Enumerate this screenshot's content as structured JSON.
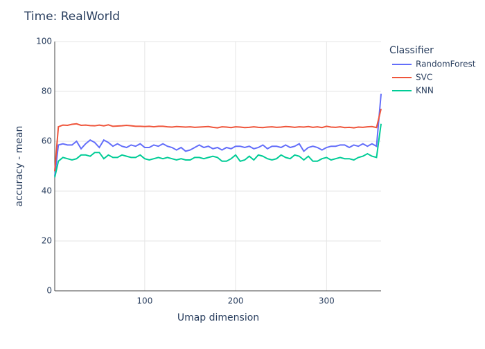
{
  "chart_data": {
    "type": "line",
    "title": "Time: RealWorld",
    "x_label": "Umap dimension",
    "y_label": "accuracy - mean",
    "legend_title": "Classifier",
    "x": [
      1,
      5,
      10,
      15,
      20,
      25,
      30,
      35,
      40,
      45,
      50,
      55,
      60,
      65,
      70,
      75,
      80,
      85,
      90,
      95,
      100,
      105,
      110,
      115,
      120,
      125,
      130,
      135,
      140,
      145,
      150,
      155,
      160,
      165,
      170,
      175,
      180,
      185,
      190,
      195,
      200,
      205,
      210,
      215,
      220,
      225,
      230,
      235,
      240,
      245,
      250,
      255,
      260,
      265,
      270,
      275,
      280,
      285,
      290,
      295,
      300,
      305,
      310,
      315,
      320,
      325,
      330,
      335,
      340,
      345,
      350,
      355,
      360
    ],
    "series": [
      {
        "name": "RandomForest",
        "color": "#636efa",
        "values": [
          46,
          58.5,
          59,
          58.5,
          58.5,
          60,
          57,
          59,
          60.5,
          59.5,
          57.5,
          60.5,
          59.5,
          58,
          59,
          58,
          57.5,
          58.5,
          58,
          59,
          57.5,
          57.5,
          58.5,
          58,
          59,
          58,
          57.5,
          56.5,
          57.5,
          56,
          56.5,
          57.5,
          58.5,
          57.5,
          58,
          57,
          57.5,
          56.5,
          57.5,
          57,
          58,
          58,
          57.5,
          58,
          57,
          57.5,
          58.5,
          57,
          58,
          58,
          57.5,
          58.5,
          57.5,
          58,
          59,
          56,
          57.5,
          58,
          57.5,
          56.5,
          57.5,
          58,
          58,
          58.5,
          58.5,
          57.5,
          58.5,
          58,
          59,
          58,
          59,
          58,
          79
        ]
      },
      {
        "name": "SVC",
        "color": "#ef553b",
        "values": [
          48,
          65.8,
          66.5,
          66.4,
          66.8,
          67,
          66.4,
          66.5,
          66.3,
          66.2,
          66.5,
          66.2,
          66.6,
          66,
          66.1,
          66.2,
          66.4,
          66.2,
          66,
          66,
          65.9,
          66,
          65.8,
          66,
          66,
          65.8,
          65.7,
          65.9,
          65.8,
          65.7,
          65.8,
          65.6,
          65.7,
          65.8,
          65.9,
          65.6,
          65.4,
          65.8,
          65.7,
          65.5,
          65.8,
          65.7,
          65.5,
          65.6,
          65.8,
          65.6,
          65.5,
          65.7,
          65.8,
          65.6,
          65.7,
          65.9,
          65.8,
          65.6,
          65.8,
          65.7,
          65.9,
          65.6,
          65.8,
          65.5,
          66,
          65.7,
          65.6,
          65.8,
          65.5,
          65.6,
          65.4,
          65.7,
          65.6,
          65.8,
          65.9,
          65.5,
          73
        ]
      },
      {
        "name": "KNN",
        "color": "#00cc96",
        "values": [
          45.5,
          52,
          53.5,
          53,
          52.5,
          53,
          54.5,
          54.5,
          54,
          55.5,
          55.5,
          53,
          54.5,
          53.5,
          53.5,
          54.5,
          54,
          53.5,
          53.5,
          54.5,
          53,
          52.5,
          53,
          53.5,
          53,
          53.5,
          53,
          52.5,
          53,
          52.5,
          52.5,
          53.5,
          53.5,
          53,
          53.5,
          54,
          53.5,
          52,
          52,
          53,
          54.5,
          52,
          52.5,
          54,
          52.5,
          54.5,
          54,
          53,
          52.5,
          53,
          54.5,
          53.5,
          53,
          54.5,
          54,
          52.5,
          54,
          52,
          52,
          53,
          53.5,
          52.5,
          53,
          53.5,
          53,
          53,
          52.5,
          53.5,
          54,
          55,
          54,
          53.5,
          67
        ]
      }
    ],
    "xlim": [
      1,
      360
    ],
    "xticks": [
      100,
      200,
      300
    ],
    "ylim": [
      0,
      100
    ],
    "yticks": [
      0,
      20,
      40,
      60,
      80,
      100
    ],
    "grid": true
  }
}
